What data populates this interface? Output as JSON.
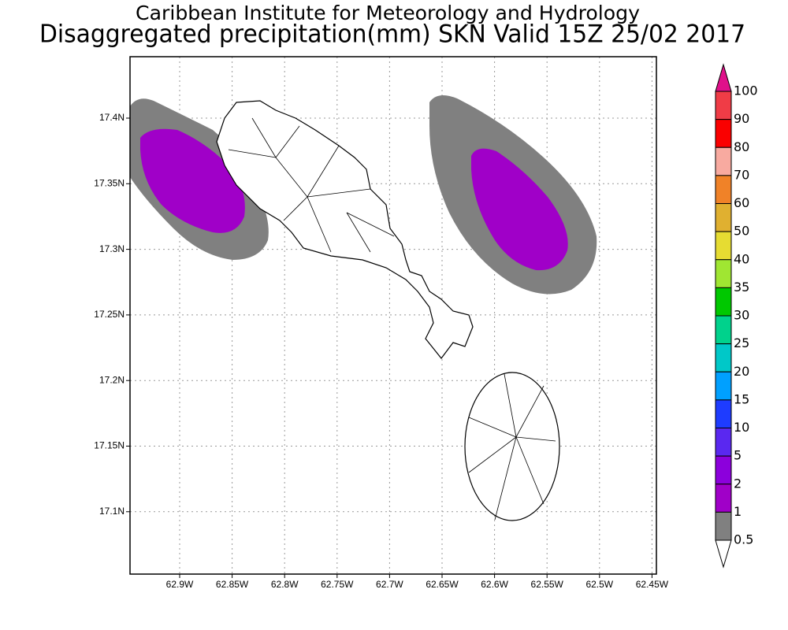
{
  "title": "Caribbean Institute for Meteorology and Hydrology",
  "subtitle": "Disaggregated precipitation(mm) SKN Valid 15Z 25/02 2017",
  "longitude_labels": [
    "62.9W",
    "62.85W",
    "62.8W",
    "62.75W",
    "62.7W",
    "62.65W",
    "62.6W",
    "62.55W",
    "62.5W",
    "62.45W"
  ],
  "latitude_labels": [
    "17.4N",
    "17.35N",
    "17.3N",
    "17.25N",
    "17.2N",
    "17.15N",
    "17.1N"
  ],
  "colorbar": {
    "labels": [
      100,
      90,
      80,
      70,
      60,
      50,
      40,
      35,
      30,
      25,
      20,
      15,
      10,
      5,
      2,
      1,
      0.5
    ],
    "colors": [
      "#f03c46",
      "#fa0000",
      "#f8aaa0",
      "#f08228",
      "#e0b030",
      "#e6dc32",
      "#a0e632",
      "#00c800",
      "#00d28c",
      "#00c8c8",
      "#00a0ff",
      "#1e3cff",
      "#5a28f0",
      "#8c00dc",
      "#a000c8",
      "#808080"
    ],
    "over_color": "#e0108a",
    "under_color": "#ffffff"
  }
}
